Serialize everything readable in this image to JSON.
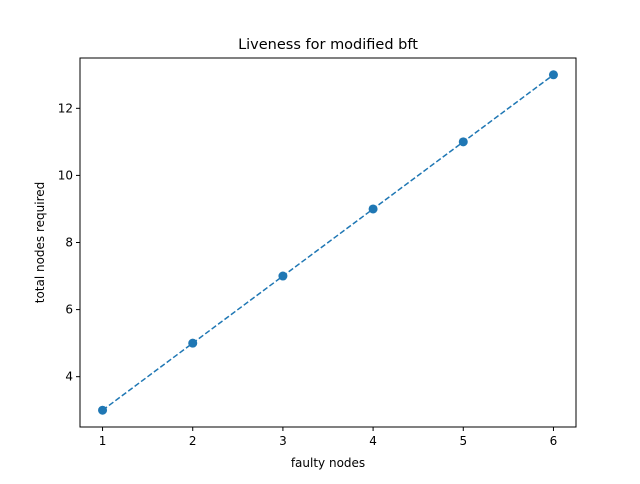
{
  "chart_data": {
    "type": "line",
    "title": "Liveness for modified bft",
    "xlabel": "faulty nodes",
    "ylabel": "total nodes required",
    "x": [
      1,
      2,
      3,
      4,
      5,
      6
    ],
    "series": [
      {
        "values": [
          3,
          5,
          7,
          9,
          11,
          13
        ],
        "color": "#1f77b4",
        "line_style": "dashed",
        "marker": "circle"
      }
    ],
    "xlim": [
      0.75,
      6.25
    ],
    "ylim": [
      2.5,
      13.5
    ],
    "x_ticks": [
      "1",
      "2",
      "3",
      "4",
      "5",
      "6"
    ],
    "y_ticks": [
      "4",
      "6",
      "8",
      "10",
      "12"
    ],
    "grid": false,
    "legend": "none"
  }
}
